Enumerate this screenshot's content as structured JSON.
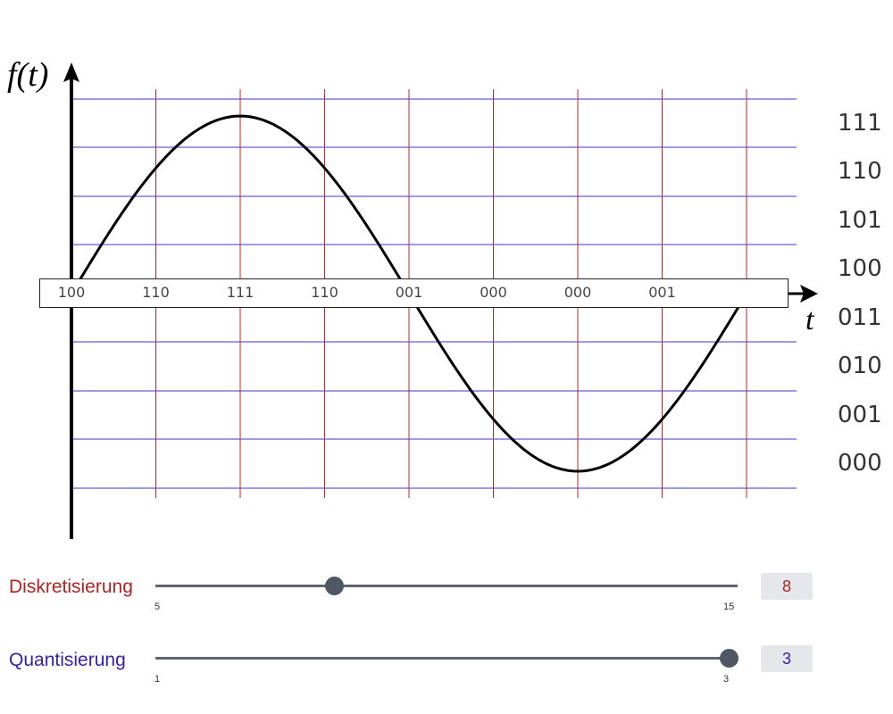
{
  "chart_data": {
    "type": "line",
    "title": "",
    "xlabel": "t",
    "ylabel": "f(t)",
    "function": "sine, one full period",
    "sample_codes": [
      "100",
      "110",
      "111",
      "110",
      "001",
      "000",
      "000",
      "001"
    ],
    "level_codes": [
      "111",
      "110",
      "101",
      "100",
      "011",
      "010",
      "001",
      "000"
    ],
    "quantization_levels": 8,
    "sample_points": 8
  },
  "controls": {
    "discretization": {
      "label": "Diskretisierung",
      "min": "5",
      "max": "15",
      "value": "8"
    },
    "quantization": {
      "label": "Quantisierung",
      "min": "1",
      "max": "3",
      "value": "3"
    }
  },
  "colors": {
    "sample_lines": "#cc2222",
    "level_lines": "#4433cc",
    "curve": "#000000",
    "slider": "#4f5862"
  }
}
